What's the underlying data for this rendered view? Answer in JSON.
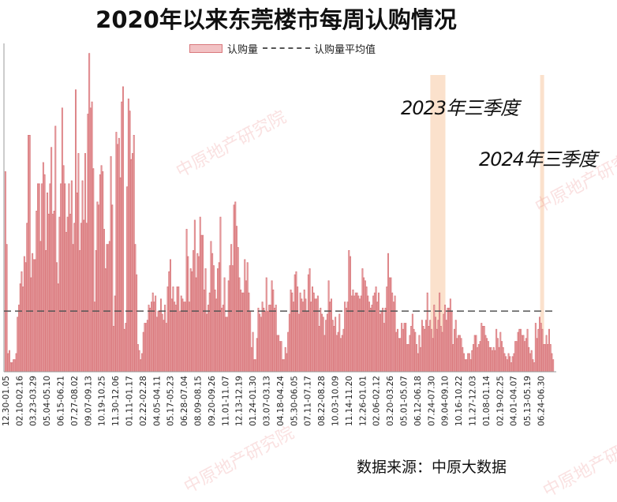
{
  "title": "2020年以来东莞楼市每周认购情况",
  "legend": {
    "bar_label": "认购量",
    "avg_label": "认购量平均值"
  },
  "source": "数据来源：中原大数据",
  "annotations": {
    "q3_2023": "2023年三季度",
    "q3_2024": "2024年三季度"
  },
  "watermark": "中原地产研究院",
  "colors": {
    "bar_fill": "#f2c2c4",
    "bar_stroke": "#d9787c",
    "highlight": "#fbe1cc",
    "avg_line": "#555555"
  },
  "chart_data": {
    "type": "bar",
    "x_tick_labels": [
      "12.30-01.05",
      "02.10-02.16",
      "03.23-03.29",
      "05.04-05.10",
      "06.15-06.21",
      "07.27-08.02",
      "09.07-09.13",
      "10.19-10.25",
      "11.30-12.06",
      "01.11-01.17",
      "02.22-02.28",
      "04.05-04.11",
      "05.17-05.23",
      "06.28-07.04",
      "08.09-08.15",
      "09.20-09.26",
      "11.01-11.07",
      "12.13-12.19",
      "01.24-01.30",
      "03.07-03.13",
      "04.18-04.24",
      "05.30-06.05",
      "07.11-07.17",
      "08.22-08.28",
      "10.03-10.09",
      "11.14-11.20",
      "12.26-01.01",
      "02.06-02.12",
      "03.20-03.26",
      "05.01-05.07",
      "06.12-06.18",
      "07.24-07.30",
      "09.04-09.10",
      "10.16-10.22",
      "11.27-12.03",
      "01.08-01.14",
      "02.19-02.25",
      "04.01-04.07",
      "05.13-05.19",
      "06.24-06.30"
    ],
    "values": [
      66,
      42,
      6,
      7,
      3,
      3,
      4,
      4,
      6,
      18,
      22,
      29,
      33,
      28,
      38,
      36,
      49,
      78,
      78,
      31,
      39,
      37,
      37,
      53,
      62,
      62,
      43,
      62,
      69,
      65,
      40,
      59,
      52,
      62,
      74,
      52,
      53,
      81,
      36,
      29,
      51,
      62,
      87,
      68,
      62,
      46,
      51,
      62,
      52,
      63,
      42,
      49,
      93,
      59,
      72,
      40,
      49,
      63,
      50,
      72,
      49,
      85,
      105,
      87,
      89,
      67,
      23,
      40,
      56,
      55,
      65,
      68,
      66,
      47,
      34,
      42,
      42,
      43,
      71,
      55,
      15,
      25,
      79,
      75,
      77,
      64,
      89,
      94,
      14,
      16,
      61,
      90,
      86,
      70,
      72,
      78,
      42,
      32,
      9,
      7,
      4,
      6,
      13,
      16,
      16,
      17,
      22,
      21,
      23,
      26,
      23,
      25,
      18,
      20,
      20,
      24,
      19,
      17,
      22,
      16,
      28,
      33,
      37,
      24,
      28,
      23,
      22,
      28,
      28,
      20,
      25,
      24,
      23,
      23,
      47,
      38,
      23,
      34,
      33,
      40,
      50,
      31,
      39,
      38,
      51,
      45,
      45,
      27,
      34,
      19,
      22,
      26,
      43,
      39,
      35,
      27,
      24,
      34,
      36,
      51,
      21,
      22,
      31,
      18,
      18,
      30,
      35,
      42,
      35,
      55,
      56,
      48,
      41,
      31,
      27,
      26,
      26,
      37,
      30,
      36,
      26,
      20,
      8,
      13,
      4,
      4,
      11,
      21,
      19,
      18,
      23,
      21,
      20,
      31,
      20,
      22,
      22,
      30,
      27,
      21,
      22,
      12,
      12,
      10,
      10,
      4,
      4,
      8,
      6,
      13,
      19,
      27,
      26,
      23,
      32,
      33,
      28,
      19,
      26,
      24,
      23,
      27,
      24,
      20,
      32,
      34,
      23,
      28,
      26,
      24,
      24,
      25,
      15,
      21,
      19,
      18,
      12,
      17,
      19,
      30,
      23,
      24,
      17,
      15,
      18,
      12,
      13,
      19,
      11,
      12,
      14,
      23,
      21,
      23,
      40,
      38,
      25,
      27,
      25,
      26,
      26,
      25,
      24,
      25,
      34,
      31,
      30,
      28,
      25,
      23,
      21,
      22,
      25,
      26,
      28,
      23,
      26,
      19,
      20,
      21,
      16,
      21,
      28,
      39,
      31,
      31,
      26,
      23,
      25,
      13,
      14,
      11,
      11,
      16,
      14,
      16,
      16,
      9,
      9,
      12,
      15,
      19,
      14,
      13,
      9,
      6,
      12,
      8,
      17,
      15,
      14,
      17,
      26,
      15,
      17,
      14,
      11,
      22,
      18,
      14,
      17,
      26,
      15,
      13,
      19,
      22,
      17,
      21,
      21,
      24,
      20,
      9,
      14,
      17,
      11,
      12,
      12,
      11,
      8,
      6,
      4,
      4,
      6,
      6,
      4,
      7,
      9,
      12,
      12,
      8,
      9,
      10,
      16,
      15,
      15,
      12,
      11,
      10,
      8,
      8,
      7,
      8,
      7,
      14,
      11,
      8,
      13,
      10,
      8,
      6,
      5,
      4,
      6,
      5,
      3,
      5,
      6,
      10,
      10,
      13,
      14,
      14,
      12,
      12,
      10,
      11,
      14,
      8,
      6,
      7,
      4,
      3,
      16,
      11,
      14,
      18,
      16,
      14,
      9,
      9,
      12,
      9,
      14,
      9,
      6,
      4
    ],
    "average": 20,
    "ylim": [
      0,
      107
    ],
    "highlight_ranges": [
      [
        "07.24-07.30",
        "09.04-09.10"
      ],
      [
        "06.24-06.30",
        "06.24-06.30"
      ]
    ],
    "xlabel": "",
    "ylabel": "",
    "grid": false
  }
}
